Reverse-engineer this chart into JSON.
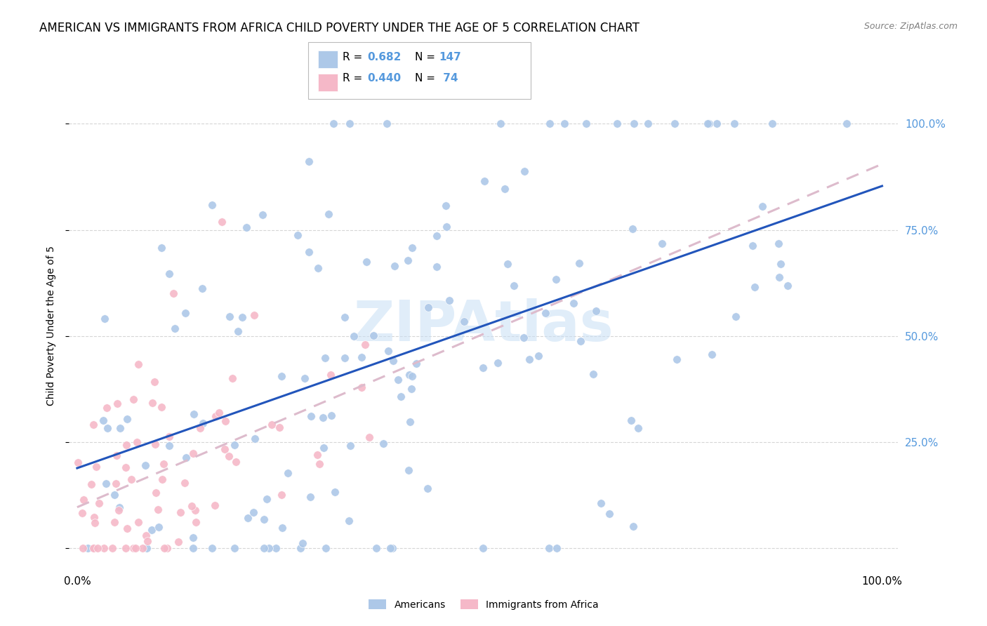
{
  "title": "AMERICAN VS IMMIGRANTS FROM AFRICA CHILD POVERTY UNDER THE AGE OF 5 CORRELATION CHART",
  "source": "Source: ZipAtlas.com",
  "ylabel": "Child Poverty Under the Age of 5",
  "blue_R": 0.682,
  "blue_N": 147,
  "pink_R": 0.44,
  "pink_N": 74,
  "blue_color": "#adc8e8",
  "pink_color": "#f5b8c8",
  "blue_line_color": "#2255bb",
  "pink_line_color": "#ddbbcc",
  "background_color": "#ffffff",
  "grid_color": "#cccccc",
  "right_tick_color": "#5599dd",
  "watermark_color": "#c8dff5",
  "title_fontsize": 12,
  "tick_fontsize": 11
}
